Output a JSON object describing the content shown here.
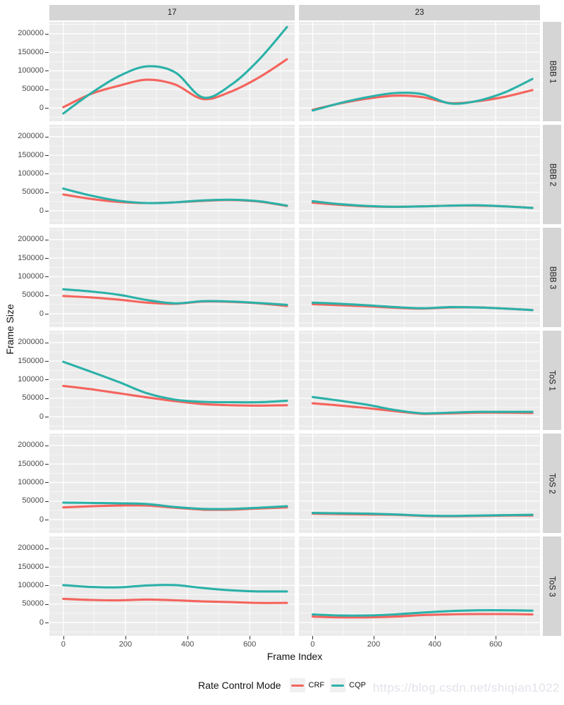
{
  "watermark": "https://blog.csdn.net/shiqian1022",
  "legend": {
    "title": "Rate Control Mode",
    "items": [
      {
        "label": "CRF",
        "color": "#f4645d"
      },
      {
        "label": "CQP",
        "color": "#2bb1a8"
      }
    ]
  },
  "colors": {
    "panel_bg": "#ebebeb",
    "grid_major": "#ffffff",
    "grid_minor": "#ffffff",
    "strip_bg": "#d5d5d5",
    "tick_text": "#4a4a4a",
    "crf": "#f4645d",
    "cqp": "#2bb1a8"
  },
  "chart_data": {
    "type": "line",
    "title": "",
    "xlabel": "Frame Index",
    "ylabel": "Frame Size",
    "legend_position": "bottom",
    "grid": true,
    "col_facets": [
      "17",
      "23"
    ],
    "row_facets": [
      "BBB 1",
      "BBB 2",
      "BBB 3",
      "ToS 1",
      "ToS 2",
      "ToS 3"
    ],
    "series_names": [
      "CRF",
      "CQP"
    ],
    "x": [
      0,
      90,
      180,
      270,
      360,
      450,
      540,
      630,
      720
    ],
    "x_ticks": [
      0,
      200,
      400,
      600
    ],
    "x_tick_labels": [
      "0",
      "200",
      "400",
      "600"
    ],
    "x_minor_ticks": [
      100,
      300,
      500,
      700
    ],
    "y_ticks": [
      0,
      50000,
      100000,
      150000,
      200000
    ],
    "y_tick_labels": [
      "0",
      "50000",
      "100000",
      "150000",
      "200000"
    ],
    "y_minor_ticks": [
      -25000,
      25000,
      75000,
      125000,
      175000,
      225000
    ],
    "xlim": [
      -45,
      745
    ],
    "ylim": [
      -36000,
      232000
    ],
    "panels": [
      {
        "row": "BBB 1",
        "col": "17",
        "CRF": [
          2000,
          38000,
          60000,
          76000,
          63000,
          24000,
          44000,
          82000,
          131000
        ],
        "CQP": [
          -15000,
          40000,
          86000,
          112000,
          96000,
          28000,
          62000,
          130000,
          218000
        ]
      },
      {
        "row": "BBB 1",
        "col": "23",
        "CRF": [
          -5000,
          12000,
          25000,
          33000,
          29000,
          13000,
          18000,
          30000,
          48000
        ],
        "CQP": [
          -7000,
          13000,
          29000,
          40000,
          37000,
          12000,
          19000,
          42000,
          78000
        ]
      },
      {
        "row": "BBB 2",
        "col": "17",
        "CRF": [
          44000,
          32000,
          24000,
          21000,
          23000,
          27000,
          29000,
          25000,
          13000
        ],
        "CQP": [
          60000,
          41000,
          27000,
          21000,
          23000,
          28000,
          30000,
          26000,
          14000
        ]
      },
      {
        "row": "BBB 2",
        "col": "23",
        "CRF": [
          22000,
          16000,
          12000,
          11000,
          12000,
          14000,
          14000,
          12000,
          8000
        ],
        "CQP": [
          26000,
          18000,
          13000,
          11000,
          12000,
          14000,
          15000,
          12000,
          8000
        ]
      },
      {
        "row": "BBB 3",
        "col": "17",
        "CRF": [
          48000,
          44000,
          38000,
          30000,
          27000,
          33000,
          32000,
          28000,
          21000
        ],
        "CQP": [
          66000,
          60000,
          51000,
          37000,
          28000,
          34000,
          33000,
          29000,
          24000
        ]
      },
      {
        "row": "BBB 3",
        "col": "23",
        "CRF": [
          26000,
          23000,
          20000,
          16000,
          14000,
          17000,
          17000,
          14000,
          10000
        ],
        "CQP": [
          30000,
          27000,
          23000,
          18000,
          15000,
          18000,
          17000,
          14000,
          10000
        ]
      },
      {
        "row": "ToS 1",
        "col": "17",
        "CRF": [
          83000,
          74000,
          63000,
          52000,
          42000,
          34000,
          31000,
          30000,
          31000
        ],
        "CQP": [
          148000,
          121000,
          93000,
          63000,
          46000,
          40000,
          39000,
          39000,
          43000
        ]
      },
      {
        "row": "ToS 1",
        "col": "23",
        "CRF": [
          36000,
          30000,
          23000,
          15000,
          8000,
          9000,
          11000,
          11000,
          10000
        ],
        "CQP": [
          53000,
          43000,
          32000,
          18000,
          9000,
          11000,
          13000,
          13000,
          13000
        ]
      },
      {
        "row": "ToS 2",
        "col": "17",
        "CRF": [
          33000,
          36000,
          38000,
          38000,
          32000,
          27000,
          27000,
          30000,
          33000
        ],
        "CQP": [
          46000,
          45000,
          44000,
          42000,
          34000,
          29000,
          29000,
          32000,
          36000
        ]
      },
      {
        "row": "ToS 2",
        "col": "23",
        "CRF": [
          16000,
          15000,
          14000,
          13000,
          10000,
          9000,
          10000,
          11000,
          11000
        ],
        "CQP": [
          18000,
          17000,
          16000,
          14000,
          11000,
          10000,
          11000,
          12000,
          13000
        ]
      },
      {
        "row": "ToS 3",
        "col": "17",
        "CRF": [
          64000,
          61000,
          60000,
          62000,
          60000,
          57000,
          55000,
          53000,
          53000
        ],
        "CQP": [
          101000,
          96000,
          95000,
          100000,
          101000,
          93000,
          87000,
          84000,
          84000
        ]
      },
      {
        "row": "ToS 3",
        "col": "23",
        "CRF": [
          16000,
          14000,
          14000,
          16000,
          20000,
          22000,
          23000,
          23000,
          22000
        ],
        "CQP": [
          22000,
          19000,
          19000,
          22000,
          27000,
          31000,
          33000,
          33000,
          32000
        ]
      }
    ]
  }
}
